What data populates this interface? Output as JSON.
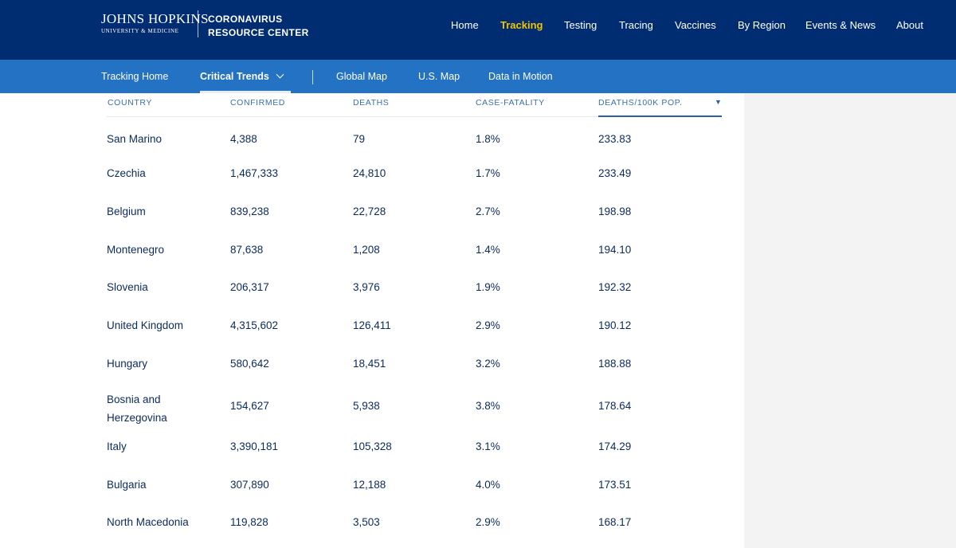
{
  "header": {
    "logo_main": "JOHNS HOPKINS",
    "logo_sub": "UNIVERSITY & MEDICINE",
    "title_line1": "CORONAVIRUS",
    "title_line2": "RESOURCE CENTER",
    "nav": [
      "Home",
      "Tracking",
      "Testing",
      "Tracing",
      "Vaccines",
      "By Region",
      "Events & News",
      "About"
    ],
    "active_nav": "Tracking",
    "accent_color": "#f1c400",
    "bg_color": "#002d72"
  },
  "subnav": {
    "items": [
      "Tracking Home",
      "Critical Trends",
      "Global Map",
      "U.S. Map",
      "Data in Motion"
    ],
    "active": "Critical Trends",
    "bg_color": "#2372c3"
  },
  "table": {
    "columns": [
      "COUNTRY",
      "CONFIRMED",
      "DEATHS",
      "CASE-FATALITY",
      "DEATHS/100K POP."
    ],
    "sorted_column": "DEATHS/100K POP.",
    "sort_direction": "descending",
    "sort_icon": "triangle-down-icon",
    "rows": [
      [
        "San Marino",
        "4,388",
        "79",
        "1.8%",
        "233.83"
      ],
      [
        "Czechia",
        "1,467,333",
        "24,810",
        "1.7%",
        "233.49"
      ],
      [
        "Belgium",
        "839,238",
        "22,728",
        "2.7%",
        "198.98"
      ],
      [
        "Montenegro",
        "87,638",
        "1,208",
        "1.4%",
        "194.10"
      ],
      [
        "Slovenia",
        "206,317",
        "3,976",
        "1.9%",
        "192.32"
      ],
      [
        "United Kingdom",
        "4,315,602",
        "126,411",
        "2.9%",
        "190.12"
      ],
      [
        "Hungary",
        "580,642",
        "18,451",
        "3.2%",
        "188.88"
      ],
      [
        "Bosnia and Herzegovina",
        "154,627",
        "5,938",
        "3.8%",
        "178.64"
      ],
      [
        "Italy",
        "3,390,181",
        "105,328",
        "3.1%",
        "174.29"
      ],
      [
        "Bulgaria",
        "307,890",
        "12,188",
        "4.0%",
        "173.51"
      ],
      [
        "North Macedonia",
        "119,828",
        "3,503",
        "2.9%",
        "168.17"
      ]
    ]
  }
}
